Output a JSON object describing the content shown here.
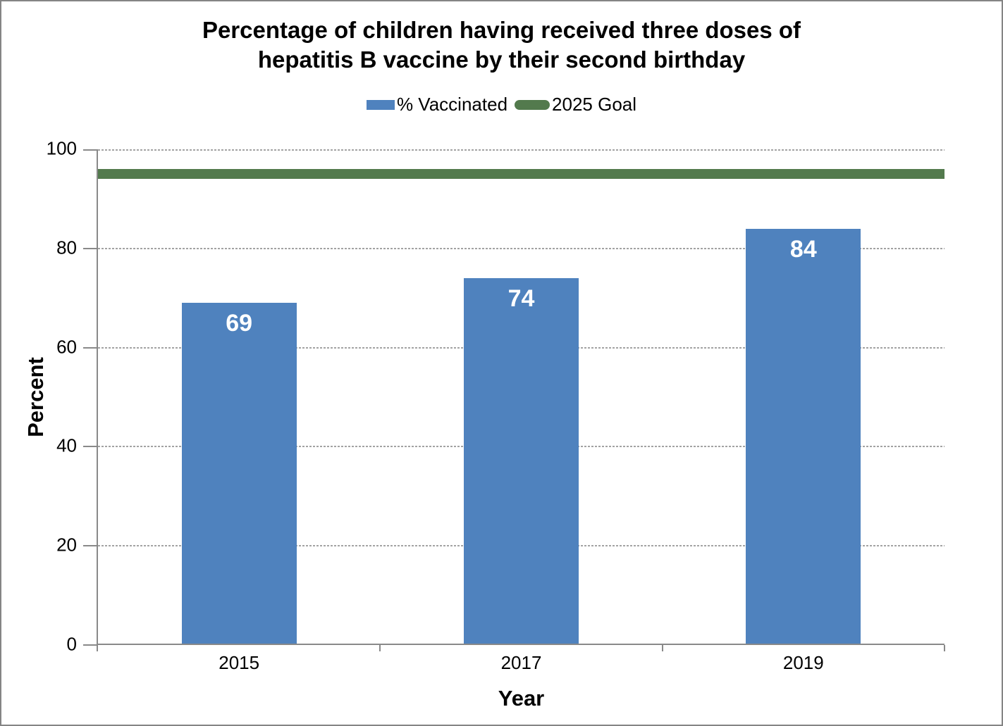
{
  "window": {
    "background": "#FFFFFF",
    "border_color": "#848484"
  },
  "legend": {
    "items": [
      {
        "label": "% Vaccinated",
        "swatch": "rect",
        "color": "#4F82BE"
      },
      {
        "label": "2025 Goal",
        "swatch": "line",
        "color": "#537A4D"
      }
    ]
  },
  "chart_data": {
    "type": "bar",
    "title": "Percentage of children having received three doses of\nhepatitis B vaccine by their second birthday",
    "categories": [
      "2015",
      "2017",
      "2019"
    ],
    "series": [
      {
        "name": "% Vaccinated",
        "values": [
          69,
          74,
          84
        ],
        "color": "#4F82BE",
        "value_label_color": "#FFFFFF"
      }
    ],
    "goal_line": {
      "name": "2025 Goal",
      "value": 95,
      "color": "#537A4D"
    },
    "xlabel": "Year",
    "ylabel": "Percent",
    "ylim": [
      0,
      100
    ],
    "yticks": [
      0,
      20,
      40,
      60,
      80,
      100
    ],
    "grid": true,
    "legend_position": "top",
    "axis_color": "#898989",
    "gridline_color": "#A3A3A3"
  }
}
